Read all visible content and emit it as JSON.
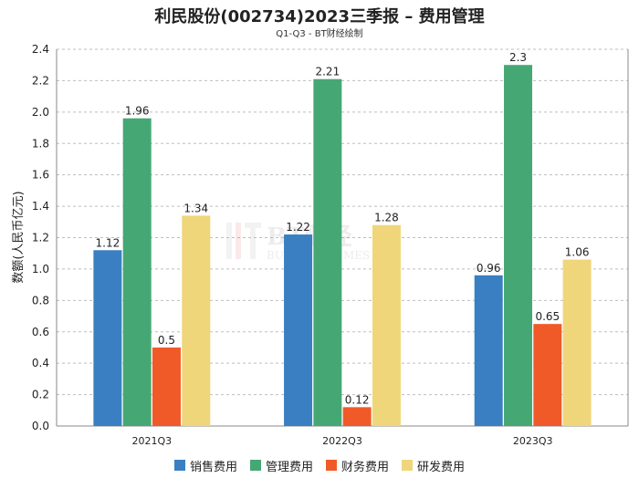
{
  "chart_data": {
    "type": "bar",
    "title": "利民股份(002734)2023三季报 – 费用管理",
    "subtitle": "Q1-Q3 - BT财经绘制",
    "ylabel": "数额(人民币亿元)",
    "xlabel": "",
    "categories": [
      "2021Q3",
      "2022Q3",
      "2023Q3"
    ],
    "ylim": [
      0,
      2.4
    ],
    "yticks": [
      "0.0",
      "0.2",
      "0.4",
      "0.6",
      "0.8",
      "1.0",
      "1.2",
      "1.4",
      "1.6",
      "1.8",
      "2.0",
      "2.2",
      "2.4"
    ],
    "grid": true,
    "legend_position": "bottom",
    "series": [
      {
        "name": "销售费用",
        "color": "#3a7fc1",
        "values": [
          1.12,
          1.22,
          0.96
        ]
      },
      {
        "name": "管理费用",
        "color": "#45a874",
        "values": [
          1.96,
          2.21,
          2.3
        ]
      },
      {
        "name": "财务费用",
        "color": "#ef5a28",
        "values": [
          0.5,
          0.12,
          0.65
        ]
      },
      {
        "name": "研发费用",
        "color": "#efd67a",
        "values": [
          1.34,
          1.28,
          1.06
        ]
      }
    ],
    "watermark": "BT财经 BUSINESS TIMES"
  }
}
